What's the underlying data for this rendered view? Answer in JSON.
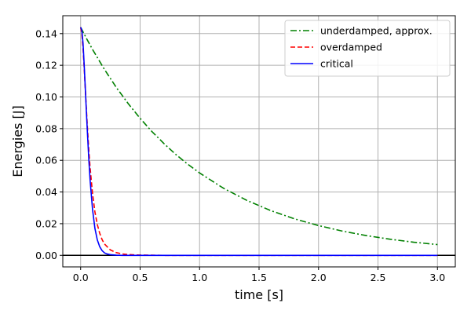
{
  "chart_data": {
    "type": "line",
    "xlabel": "time [s]",
    "ylabel": "Energies [J]",
    "xlim": [
      -0.15,
      3.15
    ],
    "ylim": [
      -0.0073,
      0.1513
    ],
    "xticks": [
      0.0,
      0.5,
      1.0,
      1.5,
      2.0,
      2.5,
      3.0
    ],
    "xtick_labels": [
      "0.0",
      "0.5",
      "1.0",
      "1.5",
      "2.0",
      "2.5",
      "3.0"
    ],
    "yticks": [
      0.0,
      0.02,
      0.04,
      0.06,
      0.08,
      0.1,
      0.12,
      0.14
    ],
    "ytick_labels": [
      "0.00",
      "0.02",
      "0.04",
      "0.06",
      "0.08",
      "0.10",
      "0.12",
      "0.14"
    ],
    "grid": true,
    "zero_line": true,
    "legend_position": "top-right",
    "series": [
      {
        "name": "underdamped, approx.",
        "color": "#008000",
        "style": "dashdot",
        "x": [
          0.0,
          0.02,
          0.05,
          0.1,
          0.2,
          0.3,
          0.4,
          0.5,
          0.6,
          0.7,
          0.8,
          0.9,
          1.0,
          1.2,
          1.4,
          1.6,
          1.8,
          2.0,
          2.2,
          2.4,
          2.6,
          2.8,
          3.0
        ],
        "y": [
          0.144,
          0.1411,
          0.1368,
          0.13,
          0.1174,
          0.106,
          0.0958,
          0.0865,
          0.0781,
          0.0706,
          0.0637,
          0.0576,
          0.052,
          0.0424,
          0.0346,
          0.0282,
          0.023,
          0.0188,
          0.0153,
          0.0125,
          0.0102,
          0.0083,
          0.0068
        ]
      },
      {
        "name": "overdamped",
        "color": "#ff0000",
        "style": "dashed",
        "x": [
          0.0,
          0.01,
          0.02,
          0.03,
          0.04,
          0.05,
          0.06,
          0.07,
          0.08,
          0.1,
          0.12,
          0.14,
          0.16,
          0.18,
          0.2,
          0.25,
          0.3,
          0.35,
          0.4,
          0.45,
          0.5,
          0.6,
          0.7,
          0.8,
          1.0,
          1.5,
          2.0,
          2.5,
          3.0
        ],
        "y": [
          0.144,
          0.14,
          0.131,
          0.118,
          0.104,
          0.09,
          0.077,
          0.065,
          0.055,
          0.039,
          0.0275,
          0.0195,
          0.014,
          0.01,
          0.0072,
          0.0034,
          0.0017,
          0.0009,
          0.0005,
          0.0003,
          0.0002,
          0.0001,
          0.0,
          0.0,
          0.0,
          0.0,
          0.0,
          0.0,
          0.0
        ]
      },
      {
        "name": "critical",
        "color": "#0000ff",
        "style": "solid",
        "x": [
          0.0,
          0.01,
          0.02,
          0.03,
          0.04,
          0.05,
          0.06,
          0.07,
          0.08,
          0.1,
          0.12,
          0.14,
          0.16,
          0.18,
          0.2,
          0.22,
          0.25,
          0.3,
          0.35,
          0.4,
          0.5,
          0.7,
          1.0,
          1.5,
          2.0,
          2.5,
          3.0
        ],
        "y": [
          0.144,
          0.142,
          0.134,
          0.12,
          0.104,
          0.088,
          0.073,
          0.059,
          0.047,
          0.029,
          0.017,
          0.0098,
          0.0055,
          0.003,
          0.0016,
          0.0009,
          0.0004,
          0.0001,
          0.0,
          0.0,
          0.0,
          0.0,
          0.0,
          0.0,
          0.0,
          0.0,
          0.0
        ]
      }
    ]
  }
}
